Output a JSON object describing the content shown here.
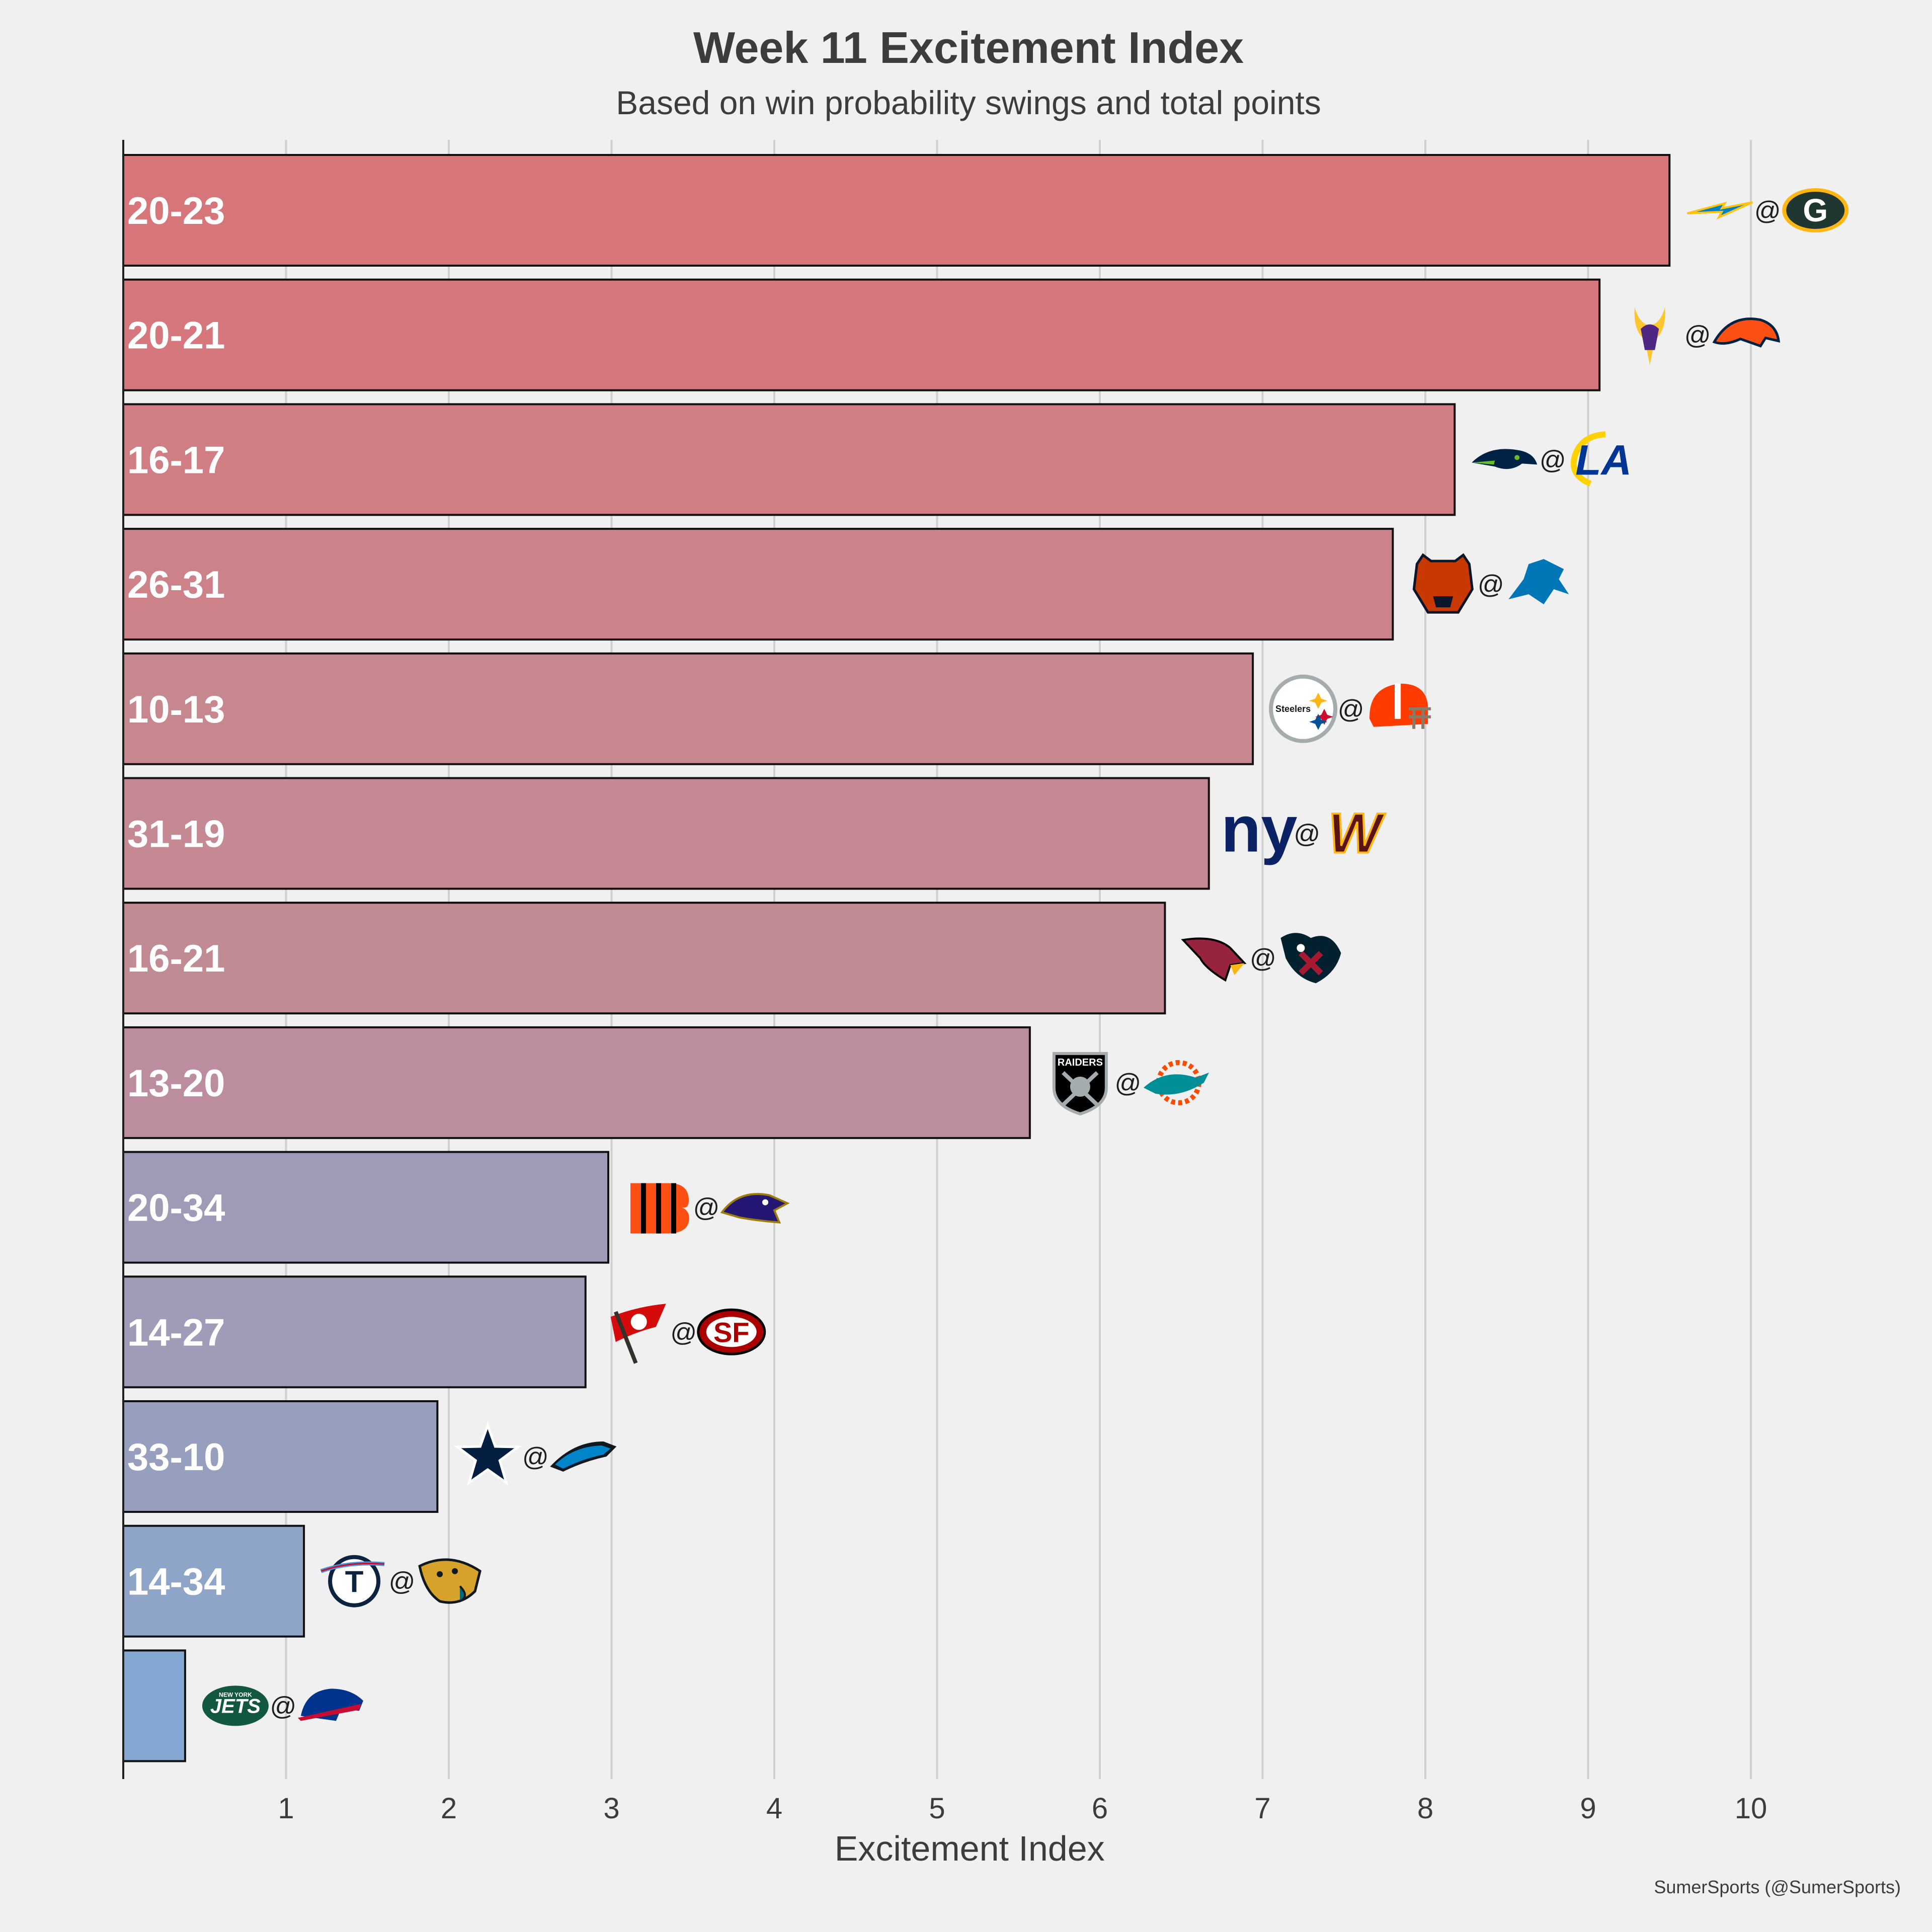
{
  "chart_data": {
    "type": "bar",
    "orientation": "horizontal",
    "title": "Week 11 Excitement Index",
    "subtitle": "Based on win probability swings and total points",
    "xlabel": "Excitement Index",
    "xlim": [
      0,
      10.5
    ],
    "xticks": [
      1,
      2,
      3,
      4,
      5,
      6,
      7,
      8,
      9,
      10
    ],
    "grid": "vertical",
    "credit": "SumerSports (@SumerSports)",
    "at_symbol": "@",
    "bars": [
      {
        "score": "20-23",
        "value": 9.5,
        "away": "LAC",
        "home": "GB",
        "color": "#d6757a"
      },
      {
        "score": "20-21",
        "value": 9.07,
        "away": "MIN",
        "home": "DEN",
        "color": "#d5777c"
      },
      {
        "score": "16-17",
        "value": 8.18,
        "away": "SEA",
        "home": "LAR",
        "color": "#d07e84"
      },
      {
        "score": "26-31",
        "value": 7.8,
        "away": "CHI",
        "home": "DET",
        "color": "#cc8288"
      },
      {
        "score": "10-13",
        "value": 6.94,
        "away": "PIT",
        "home": "CLE",
        "color": "#c7878f"
      },
      {
        "score": "31-19",
        "value": 6.67,
        "away": "NYG",
        "home": "WAS",
        "color": "#c48992"
      },
      {
        "score": "16-21",
        "value": 6.4,
        "away": "ARI",
        "home": "HOU",
        "color": "#c18b94"
      },
      {
        "score": "13-20",
        "value": 5.57,
        "away": "LV",
        "home": "MIA",
        "color": "#bc8d9e"
      },
      {
        "score": "20-34",
        "value": 2.98,
        "away": "CIN",
        "home": "BAL",
        "color": "#a19ab6"
      },
      {
        "score": "14-27",
        "value": 2.84,
        "away": "TB",
        "home": "SF",
        "color": "#a09bb7"
      },
      {
        "score": "33-10",
        "value": 1.93,
        "away": "DAL",
        "home": "CAR",
        "color": "#979fbf"
      },
      {
        "score": "14-34",
        "value": 1.11,
        "away": "TEN",
        "home": "JAX",
        "color": "#8ea5c8"
      },
      {
        "score": "",
        "value": 0.38,
        "away": "NYJ",
        "home": "BUF",
        "color": "#82a7d0"
      }
    ]
  },
  "logos": {
    "LAC": {
      "primary": "#0080c6",
      "secondary": "#ffc20e",
      "icon": "bolt-icon"
    },
    "GB": {
      "primary": "#203731",
      "secondary": "#ffb612",
      "icon": "g-oval-icon",
      "text": "G"
    },
    "MIN": {
      "primary": "#4f2683",
      "secondary": "#ffc62f",
      "icon": "viking-head-icon"
    },
    "DEN": {
      "primary": "#fb4f14",
      "secondary": "#002244",
      "icon": "horse-head-icon"
    },
    "SEA": {
      "primary": "#002244",
      "secondary": "#69be28",
      "icon": "seahawk-head-icon"
    },
    "LAR": {
      "primary": "#003594",
      "secondary": "#ffd100",
      "icon": "la-letters-icon",
      "text": "LA"
    },
    "CHI": {
      "primary": "#c83803",
      "secondary": "#0b162a",
      "icon": "bear-head-icon"
    },
    "DET": {
      "primary": "#0076b6",
      "secondary": "#b0b7bc",
      "icon": "lion-icon"
    },
    "PIT": {
      "primary": "#ffb612",
      "secondary": "#101820",
      "icon": "steelers-hypocycloids-icon",
      "text": "Steelers"
    },
    "CLE": {
      "primary": "#ff3c00",
      "secondary": "#311d00",
      "icon": "helmet-icon"
    },
    "NYG": {
      "primary": "#0b2265",
      "secondary": "#a71930",
      "icon": "ny-letters-icon",
      "text": "ny"
    },
    "WAS": {
      "primary": "#5a1414",
      "secondary": "#ffb612",
      "icon": "w-letter-icon",
      "text": "W"
    },
    "ARI": {
      "primary": "#97233f",
      "secondary": "#ffb612",
      "icon": "cardinal-head-icon"
    },
    "HOU": {
      "primary": "#03202f",
      "secondary": "#a71930",
      "icon": "bull-head-icon"
    },
    "LV": {
      "primary": "#000000",
      "secondary": "#a5acaf",
      "icon": "raiders-shield-icon",
      "text": "RAIDERS"
    },
    "MIA": {
      "primary": "#008e97",
      "secondary": "#fc4c02",
      "icon": "dolphin-icon"
    },
    "CIN": {
      "primary": "#fb4f14",
      "secondary": "#000000",
      "icon": "b-stripes-icon"
    },
    "BAL": {
      "primary": "#241773",
      "secondary": "#9e7c0c",
      "icon": "raven-head-icon"
    },
    "TB": {
      "primary": "#d50a0a",
      "secondary": "#34302b",
      "icon": "flag-icon"
    },
    "SF": {
      "primary": "#aa0000",
      "secondary": "#b3995d",
      "icon": "sf-oval-icon",
      "text": "SF"
    },
    "DAL": {
      "primary": "#041e42",
      "secondary": "#869397",
      "icon": "star-icon"
    },
    "CAR": {
      "primary": "#0085ca",
      "secondary": "#101820",
      "icon": "panther-icon"
    },
    "TEN": {
      "primary": "#4b92db",
      "secondary": "#c8102e",
      "icon": "titans-t-icon",
      "text": "T"
    },
    "JAX": {
      "primary": "#006778",
      "secondary": "#d7a22a",
      "icon": "jaguar-head-icon"
    },
    "NYJ": {
      "primary": "#125740",
      "secondary": "#ffffff",
      "icon": "jets-oval-icon",
      "text": "JETS",
      "subtext": "NEW YORK"
    },
    "BUF": {
      "primary": "#00338d",
      "secondary": "#c60c30",
      "icon": "bison-icon"
    }
  }
}
